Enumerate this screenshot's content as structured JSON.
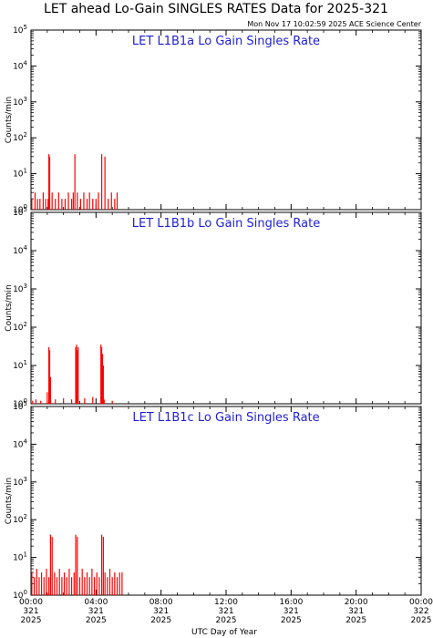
{
  "title": "LET ahead Lo-Gain SINGLES RATES Data for 2025-321",
  "timestamp": "Mon Nov 17 10:02:59 2025 ACE Science Center",
  "colors": {
    "data": "#ff0000",
    "panel_title": "#1f1fd6",
    "axes": "#000000"
  },
  "chart_data": [
    {
      "type": "bar",
      "title": "LET L1B1a Lo Gain Singles Rate",
      "ylabel": "Counts/min",
      "xlabel": "",
      "yscale": "log",
      "ylim": [
        1,
        100000
      ],
      "xlim_hours": [
        0,
        24
      ],
      "ytick_labels": [
        [
          "10",
          "0"
        ],
        [
          "10",
          "1"
        ],
        [
          "10",
          "2"
        ],
        [
          "10",
          "3"
        ],
        [
          "10",
          "4"
        ],
        [
          "10",
          "5"
        ]
      ],
      "x": [
        0.05,
        0.25,
        0.4,
        0.55,
        0.75,
        0.9,
        1.05,
        1.1,
        1.15,
        1.3,
        1.5,
        1.7,
        1.9,
        2.1,
        2.3,
        2.5,
        2.6,
        2.7,
        2.85,
        3.05,
        3.25,
        3.45,
        3.6,
        3.8,
        4.0,
        4.15,
        4.35,
        4.55,
        4.75,
        4.95,
        5.15,
        5.3
      ],
      "values": [
        2,
        3,
        2,
        2,
        3,
        2,
        2,
        35,
        30,
        3,
        2,
        3,
        2,
        2,
        3,
        2,
        3,
        35,
        3,
        2,
        3,
        2,
        3,
        2,
        2,
        3,
        35,
        30,
        2,
        3,
        2,
        3
      ]
    },
    {
      "type": "bar",
      "title": "LET L1B1b Lo Gain Singles Rate",
      "ylabel": "Counts/min",
      "xlabel": "",
      "yscale": "log",
      "ylim": [
        1,
        100000
      ],
      "xlim_hours": [
        0,
        24
      ],
      "ytick_labels": [
        [
          "10",
          "0"
        ],
        [
          "10",
          "1"
        ],
        [
          "10",
          "2"
        ],
        [
          "10",
          "3"
        ],
        [
          "10",
          "4"
        ],
        [
          "10",
          "5"
        ]
      ],
      "x": [
        0.1,
        0.3,
        0.6,
        1.0,
        1.1,
        1.15,
        1.2,
        1.5,
        2.0,
        2.5,
        2.75,
        2.8,
        2.85,
        2.9,
        3.3,
        3.8,
        4.3,
        4.35,
        4.4,
        4.45,
        4.5,
        5.0
      ],
      "values": [
        1.2,
        1.3,
        1.2,
        2,
        30,
        25,
        5,
        1.3,
        1.4,
        1.3,
        30,
        35,
        25,
        30,
        1.4,
        1.5,
        35,
        30,
        20,
        10,
        1.3,
        1.2
      ]
    },
    {
      "type": "bar",
      "title": "LET L1B1c Lo Gain Singles Rate",
      "ylabel": "Counts/min",
      "xlabel": "UTC Day of Year",
      "yscale": "log",
      "ylim": [
        1,
        100000
      ],
      "xlim_hours": [
        0,
        24
      ],
      "ytick_labels": [
        [
          "10",
          "0"
        ],
        [
          "10",
          "1"
        ],
        [
          "10",
          "2"
        ],
        [
          "10",
          "3"
        ],
        [
          "10",
          "4"
        ],
        [
          "10",
          "5"
        ]
      ],
      "x": [
        0.05,
        0.2,
        0.35,
        0.5,
        0.65,
        0.8,
        0.95,
        1.1,
        1.2,
        1.3,
        1.45,
        1.6,
        1.75,
        1.9,
        2.05,
        2.2,
        2.35,
        2.5,
        2.65,
        2.75,
        2.85,
        3.0,
        3.15,
        3.3,
        3.45,
        3.6,
        3.75,
        3.9,
        4.05,
        4.2,
        4.35,
        4.45,
        4.55,
        4.7,
        4.85,
        5.0,
        5.15,
        5.3,
        5.45,
        5.6
      ],
      "values": [
        4,
        3,
        5,
        3,
        4,
        3,
        5,
        3,
        40,
        35,
        4,
        3,
        5,
        3,
        4,
        3,
        5,
        3,
        4,
        40,
        35,
        3,
        5,
        3,
        4,
        3,
        5,
        3,
        4,
        3,
        40,
        35,
        4,
        3,
        5,
        3,
        4,
        3,
        4,
        4
      ]
    }
  ],
  "xticks": [
    {
      "time": "00:00",
      "doy": "321",
      "year": "2025"
    },
    {
      "time": "04:00",
      "doy": "321",
      "year": "2025"
    },
    {
      "time": "08:00",
      "doy": "321",
      "year": "2025"
    },
    {
      "time": "12:00",
      "doy": "321",
      "year": "2025"
    },
    {
      "time": "16:00",
      "doy": "321",
      "year": "2025"
    },
    {
      "time": "20:00",
      "doy": "321",
      "year": "2025"
    },
    {
      "time": "00:00",
      "doy": "322",
      "year": "2025"
    }
  ]
}
